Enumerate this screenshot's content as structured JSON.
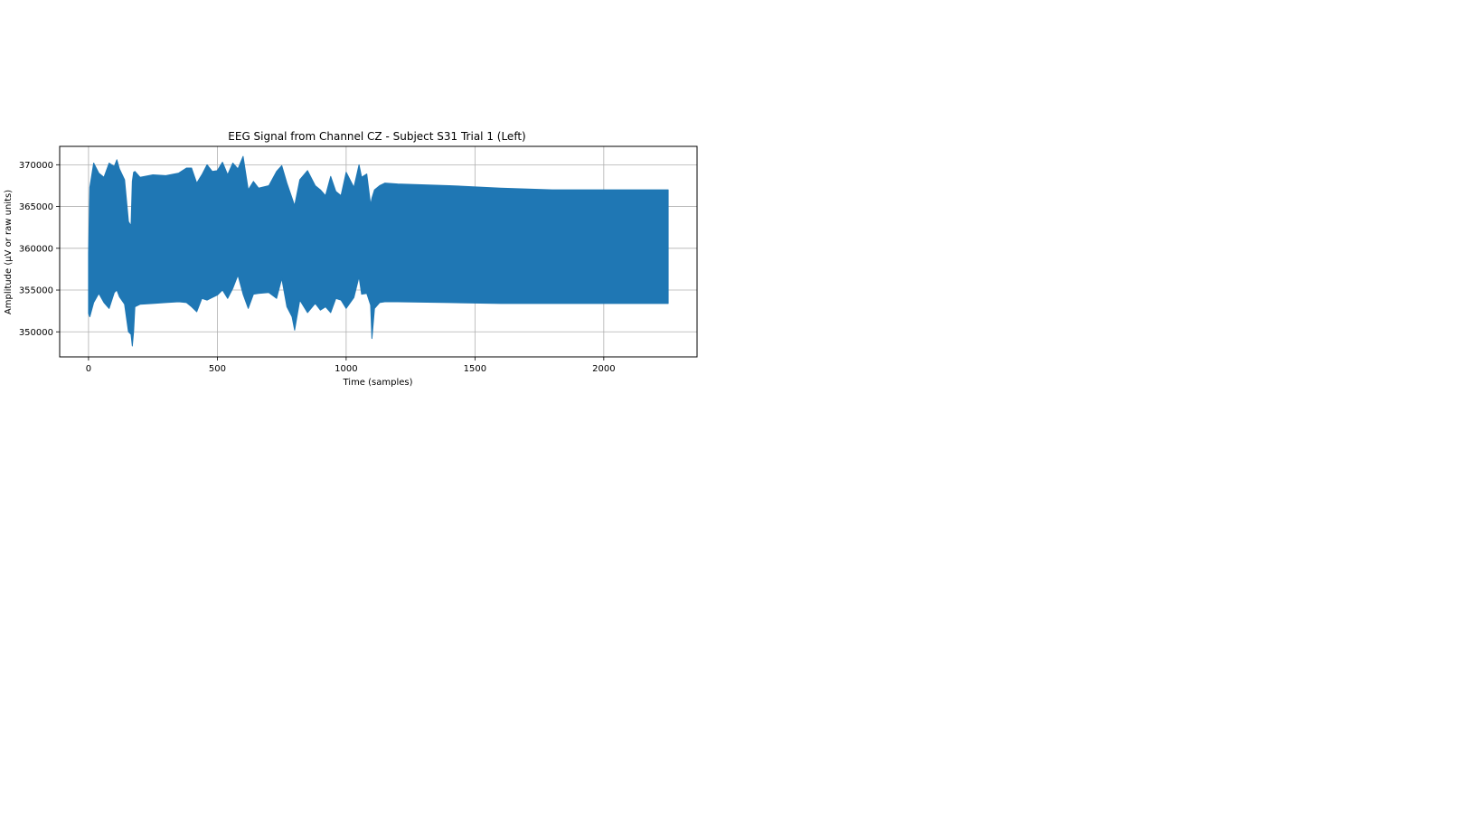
{
  "chart_data": {
    "type": "area",
    "title": "EEG Signal from Channel CZ - Subject S31 Trial 1 (Left)",
    "xlabel": "Time (samples)",
    "ylabel": "Amplitude (µV or raw units)",
    "xlim": [
      -112,
      2362
    ],
    "ylim": [
      347000,
      372200
    ],
    "xticks": [
      0,
      500,
      1000,
      1500,
      2000
    ],
    "yticks": [
      350000,
      355000,
      360000,
      365000,
      370000
    ],
    "xtick_labels": [
      "0",
      "500",
      "1000",
      "1500",
      "2000"
    ],
    "ytick_labels": [
      "350000",
      "355000",
      "360000",
      "365000",
      "370000"
    ],
    "grid": true,
    "color": "#1f77b4",
    "series": [
      {
        "x": [
          0,
          5,
          20,
          40,
          60,
          80,
          100,
          110,
          120,
          140,
          155,
          165,
          170,
          175,
          180,
          200,
          250,
          300,
          350,
          380,
          400,
          420,
          440,
          460,
          480,
          500,
          520,
          540,
          560,
          580,
          600,
          620,
          640,
          660,
          700,
          730,
          750,
          770,
          790,
          800,
          820,
          850,
          880,
          900,
          920,
          940,
          960,
          980,
          1000,
          1030,
          1050,
          1060,
          1080,
          1095,
          1100,
          1110,
          1130,
          1150,
          1200,
          1400,
          1600,
          1800,
          2000,
          2100,
          2250
        ],
        "upper": [
          359500,
          367300,
          370200,
          369000,
          368500,
          370200,
          369800,
          370600,
          369500,
          368200,
          363200,
          362700,
          368000,
          369100,
          369200,
          368500,
          368800,
          368700,
          369000,
          369600,
          369600,
          367800,
          368800,
          370000,
          369200,
          369300,
          370300,
          368800,
          370200,
          369500,
          371000,
          367000,
          368000,
          367200,
          367500,
          369200,
          369900,
          367800,
          366000,
          365100,
          368200,
          369300,
          367500,
          367000,
          366300,
          368600,
          366800,
          366300,
          369100,
          367300,
          370000,
          368500,
          368900,
          365200,
          366000,
          367000,
          367500,
          367800,
          367700,
          367500,
          367200,
          367000,
          367000,
          367000,
          367000
        ],
        "lower": [
          352200,
          351800,
          353500,
          354600,
          353500,
          352800,
          354700,
          355000,
          354200,
          353300,
          350000,
          349700,
          348300,
          350000,
          353000,
          353300,
          353400,
          353500,
          353600,
          353500,
          353000,
          352400,
          354000,
          353800,
          354100,
          354400,
          355000,
          354000,
          355200,
          356800,
          354500,
          352800,
          354500,
          354600,
          354700,
          354000,
          356400,
          353000,
          351800,
          350200,
          353800,
          352300,
          353400,
          352600,
          353000,
          352300,
          354000,
          353800,
          352800,
          354100,
          356600,
          354500,
          354600,
          353200,
          349200,
          352800,
          353500,
          353600,
          353600,
          353500,
          353400,
          353400,
          353400,
          353400,
          353400
        ]
      }
    ]
  }
}
